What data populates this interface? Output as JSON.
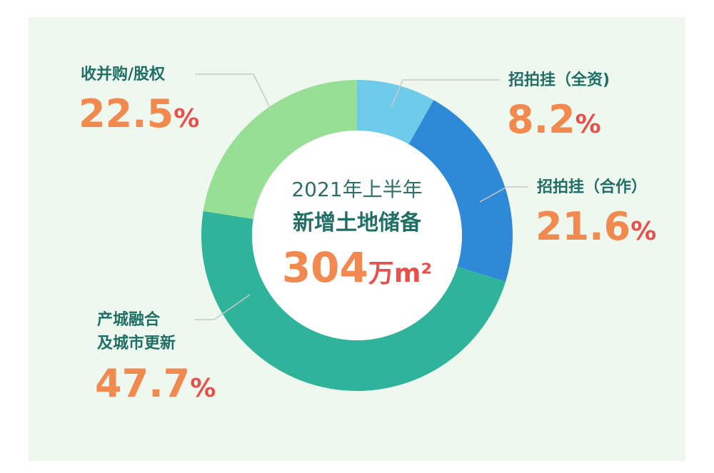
{
  "center": {
    "line1": "2021年上半年",
    "line2": "新增土地储备",
    "value": "304",
    "unit": "万m²"
  },
  "chart_data": {
    "type": "pie",
    "donut": true,
    "slices": [
      {
        "label": "招拍挂（全资)",
        "value": 8.2,
        "display": "8.2",
        "color": "#6ecbe9"
      },
      {
        "label": "招拍挂（合作）",
        "value": 21.6,
        "display": "21.6",
        "color": "#2e8ad6"
      },
      {
        "label": "产城融合及城市更新",
        "label_line1": "产城融合",
        "label_line2": "及城市更新",
        "value": 47.7,
        "display": "47.7",
        "color": "#2fb39b"
      },
      {
        "label": "收并购/股权",
        "value": 22.5,
        "display": "22.5",
        "color": "#97df94"
      }
    ],
    "unit": "%"
  }
}
